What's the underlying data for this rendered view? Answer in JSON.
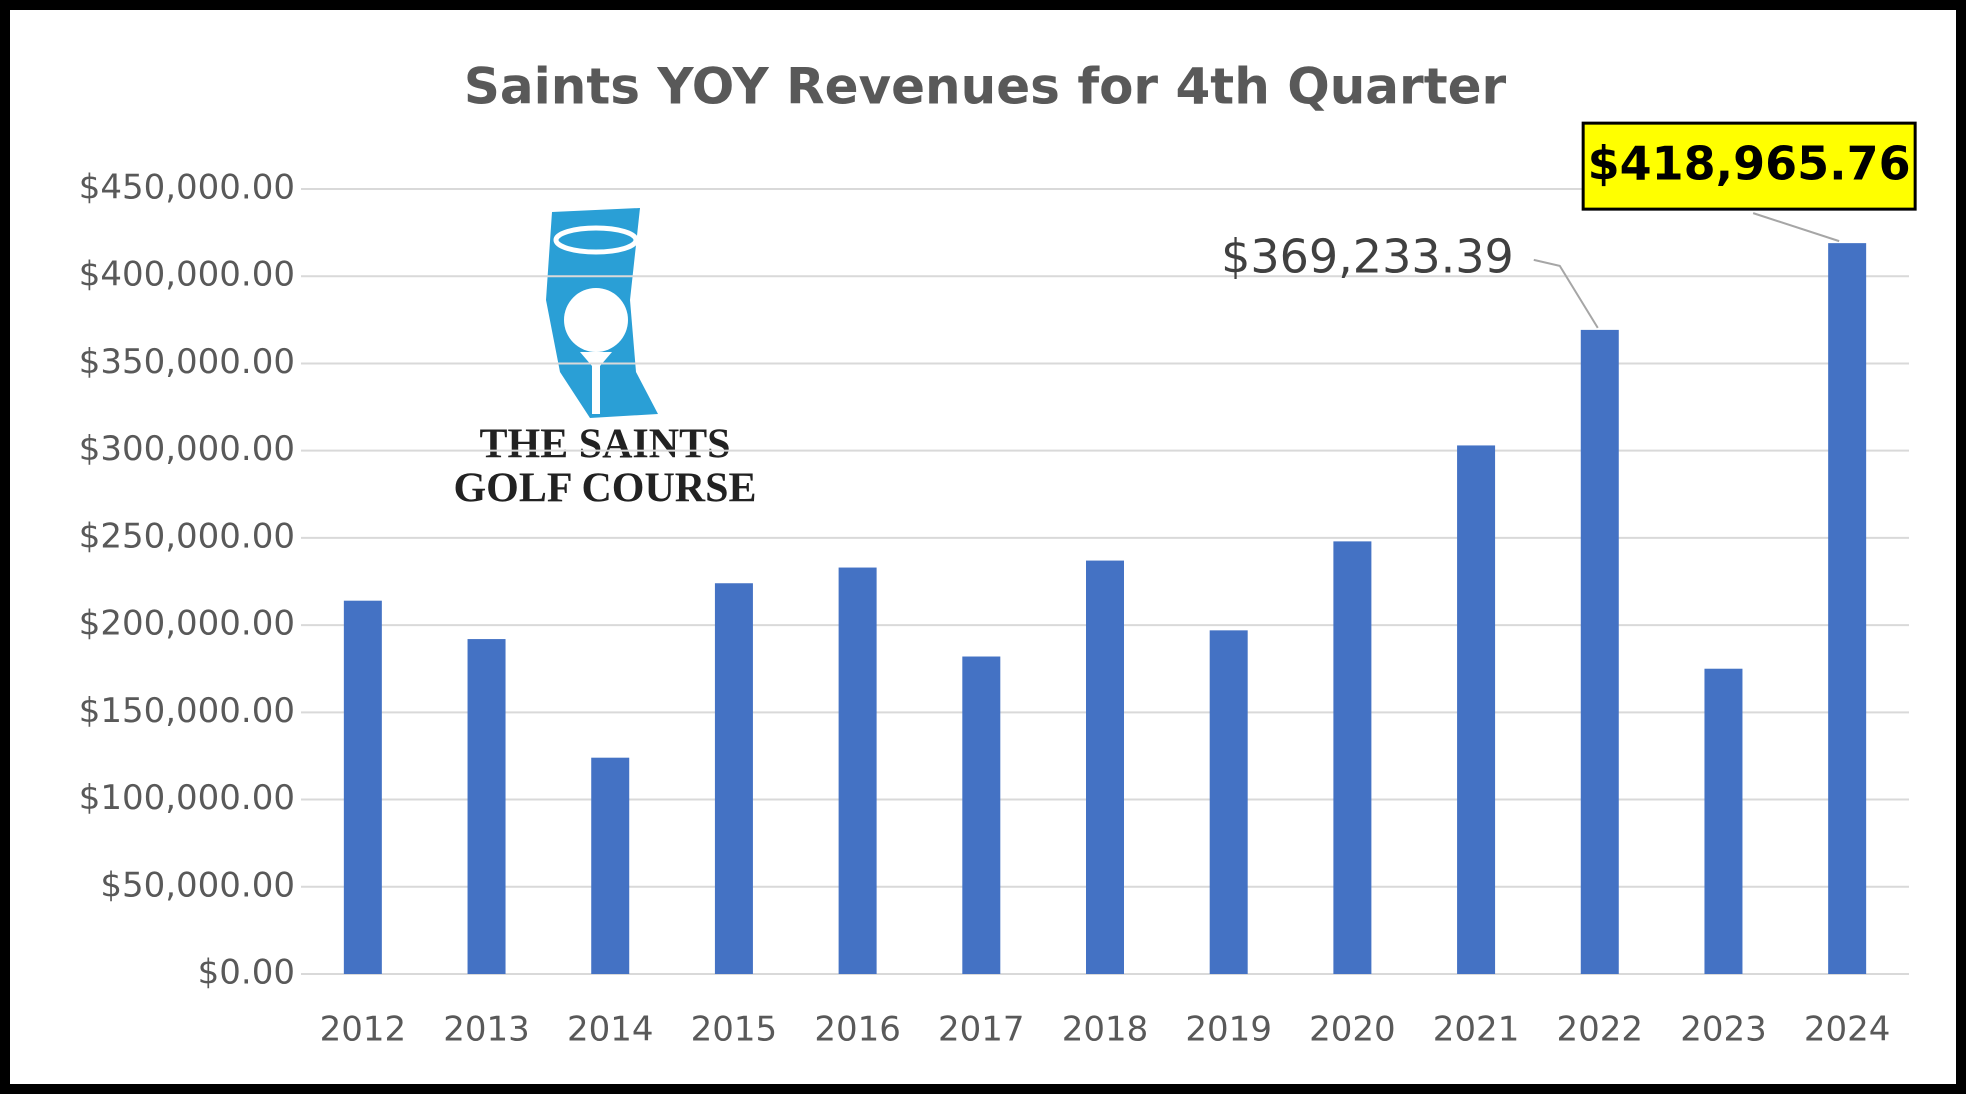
{
  "chart_data": {
    "type": "bar",
    "title": "Saints YOY Revenues for 4th Quarter",
    "logo": {
      "line1": "THE SAINTS",
      "line2": "GOLF COURSE"
    },
    "categories": [
      "2012",
      "2013",
      "2014",
      "2015",
      "2016",
      "2017",
      "2018",
      "2019",
      "2020",
      "2021",
      "2022",
      "2023",
      "2024"
    ],
    "values": [
      214000,
      192000,
      124000,
      224000,
      233000,
      182000,
      237000,
      197000,
      248000,
      303000,
      369233.39,
      175000,
      418965.76
    ],
    "value_labels": [
      null,
      null,
      null,
      null,
      null,
      null,
      null,
      null,
      null,
      null,
      "$369,233.39",
      null,
      "$418,965.76"
    ],
    "color": "#4472c4",
    "ylim": [
      0,
      450000
    ],
    "yticks": [
      {
        "value": 0,
        "label": "$0.00"
      },
      {
        "value": 50000,
        "label": "$50,000.00"
      },
      {
        "value": 100000,
        "label": "$100,000.00"
      },
      {
        "value": 150000,
        "label": "$150,000.00"
      },
      {
        "value": 200000,
        "label": "$200,000.00"
      },
      {
        "value": 250000,
        "label": "$250,000.00"
      },
      {
        "value": 300000,
        "label": "$300,000.00"
      },
      {
        "value": 350000,
        "label": "$350,000.00"
      },
      {
        "value": 400000,
        "label": "$400,000.00"
      },
      {
        "value": 450000,
        "label": "$450,000.00"
      }
    ],
    "grid": true
  }
}
